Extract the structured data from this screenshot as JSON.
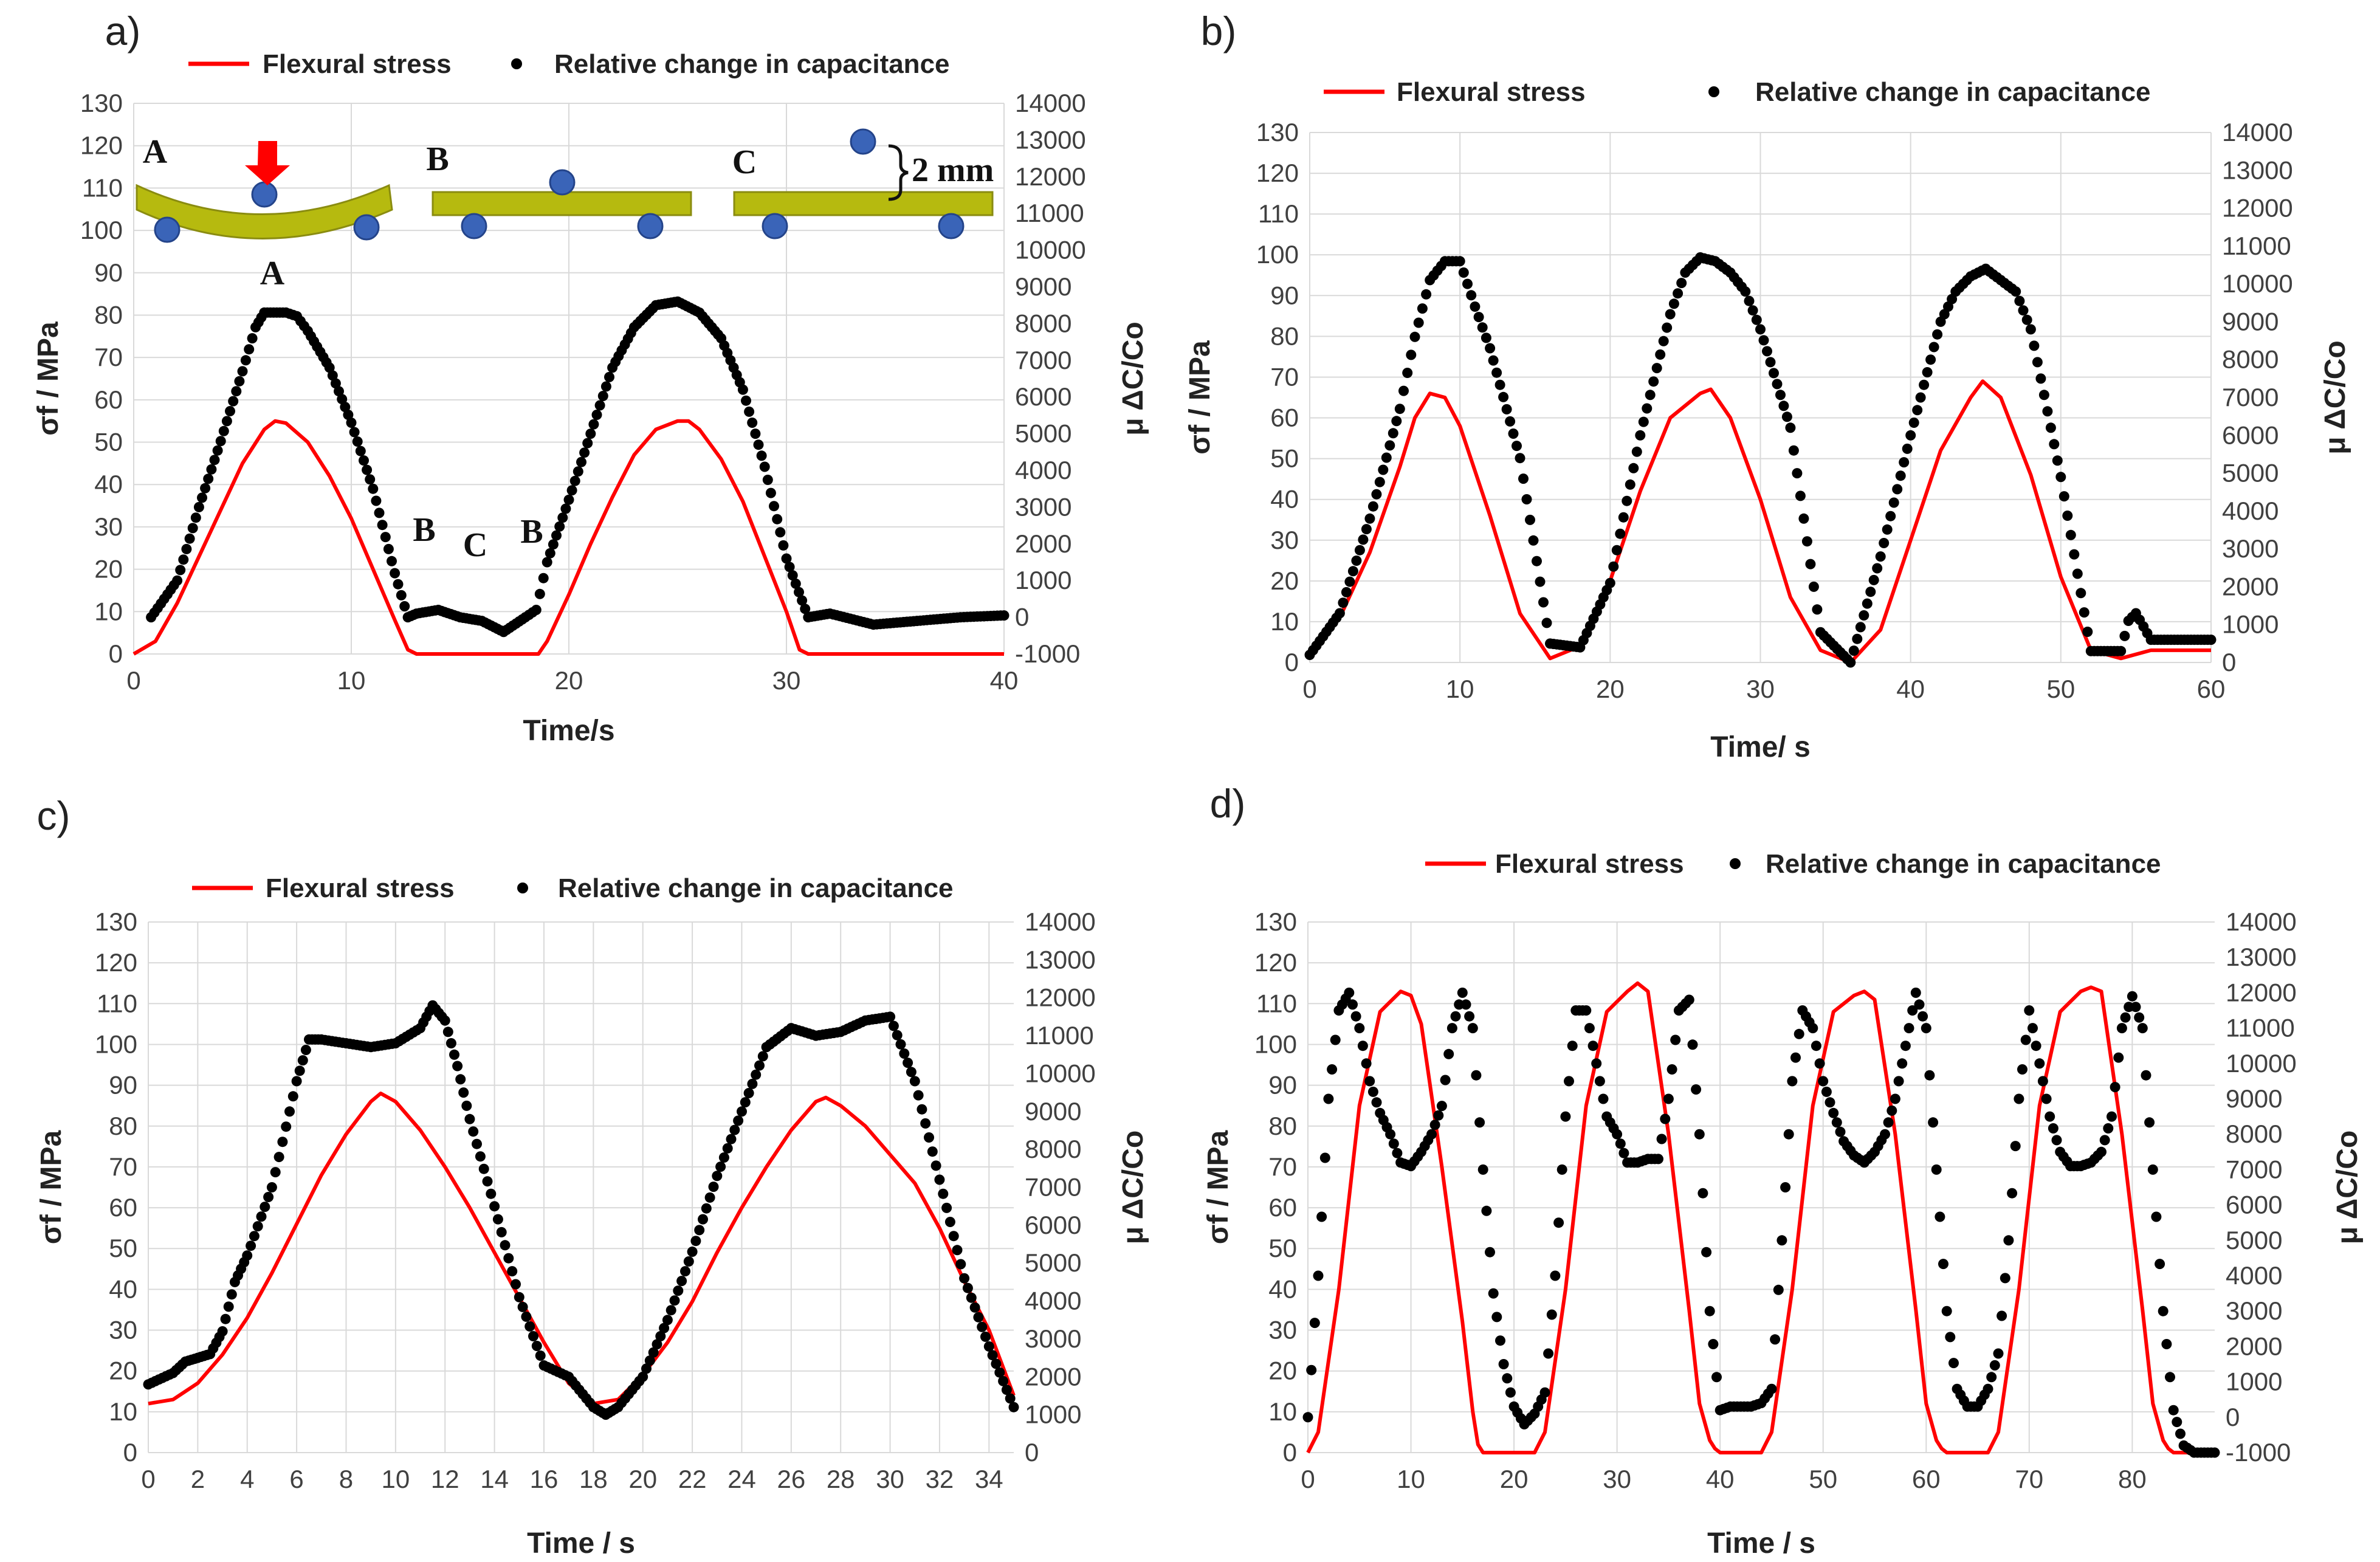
{
  "colors": {
    "stress": "#ff0000",
    "capacitance": "#000000",
    "grid": "#d9d9d9",
    "beam": "#b6ba0f",
    "ball": "#3a64b8",
    "arrow": "#ff0000"
  },
  "chart_data": [
    {
      "type": "line",
      "panel": "a)",
      "legend": [
        "Flexural stress",
        "Relative change in capacitance"
      ],
      "xlabel": "Time/s",
      "ylabel": "σf / MPa",
      "y2label": "μ ΔC/Co",
      "xlim": [
        0,
        40
      ],
      "ylim": [
        0,
        130
      ],
      "y2lim": [
        -1000,
        14000
      ],
      "xticks": [
        "0",
        "10",
        "20",
        "30",
        "40"
      ],
      "yticks": [
        "0",
        "10",
        "20",
        "30",
        "40",
        "50",
        "60",
        "70",
        "80",
        "90",
        "100",
        "110",
        "120",
        "130"
      ],
      "y2ticks": [
        "-1000",
        "0",
        "1000",
        "2000",
        "3000",
        "4000",
        "5000",
        "6000",
        "7000",
        "8000",
        "9000",
        "10000",
        "11000",
        "12000",
        "13000",
        "14000"
      ],
      "series": [
        {
          "name": "Flexural stress",
          "axis": "left",
          "x": [
            0,
            1,
            2,
            3,
            4,
            5,
            6,
            6.5,
            7,
            8,
            9,
            10,
            11,
            12,
            12.6,
            13,
            14,
            15,
            16,
            17,
            18,
            18.6,
            19,
            20,
            21,
            22,
            23,
            24,
            25,
            25.5,
            26,
            27,
            28,
            29,
            30,
            30.6,
            31,
            35,
            40
          ],
          "y": [
            0,
            3,
            12,
            23,
            34,
            45,
            53,
            55,
            54.5,
            50,
            42,
            32,
            20,
            8,
            1,
            0,
            0,
            0,
            0,
            0,
            0,
            0,
            3,
            14,
            26,
            37,
            47,
            53,
            55,
            55,
            53,
            46,
            36,
            23,
            10,
            1,
            0,
            0,
            0
          ]
        },
        {
          "name": "Relative change in capacitance",
          "axis": "right",
          "x": [
            0.8,
            2,
            3,
            4,
            5,
            5.6,
            6,
            7,
            7.5,
            8,
            9,
            10,
            11,
            12,
            12.6,
            13,
            14,
            15,
            16,
            17,
            18,
            18.5,
            19,
            20,
            21,
            22,
            23,
            24,
            25,
            26,
            27,
            28,
            29,
            30,
            31,
            32,
            34,
            36,
            38,
            40
          ],
          "y": [
            0,
            1000,
            3000,
            4800,
            6700,
            7900,
            8300,
            8300,
            8200,
            7800,
            6800,
            5300,
            3500,
            1200,
            0,
            100,
            200,
            0,
            -100,
            -400,
            0,
            200,
            1500,
            3200,
            5000,
            6800,
            7900,
            8500,
            8600,
            8300,
            7600,
            6200,
            4100,
            1600,
            0,
            100,
            -200,
            -100,
            0,
            50
          ]
        }
      ],
      "annotations": [
        "A",
        "B",
        "C",
        "A",
        "B",
        "C",
        "B",
        "2 mm"
      ]
    },
    {
      "type": "line",
      "panel": "b)",
      "legend": [
        "Flexural stress",
        "Relative change in capacitance"
      ],
      "xlabel": "Time/ s",
      "ylabel": "σf / MPa",
      "y2label": "μ ΔC/Co",
      "xlim": [
        0,
        60
      ],
      "ylim": [
        0,
        130
      ],
      "y2lim": [
        0,
        14000
      ],
      "xticks": [
        "0",
        "10",
        "20",
        "30",
        "40",
        "50",
        "60"
      ],
      "yticks": [
        "0",
        "10",
        "20",
        "30",
        "40",
        "50",
        "60",
        "70",
        "80",
        "90",
        "100",
        "110",
        "120",
        "130"
      ],
      "y2ticks": [
        "0",
        "1000",
        "2000",
        "3000",
        "4000",
        "5000",
        "6000",
        "7000",
        "8000",
        "9000",
        "10000",
        "11000",
        "12000",
        "13000",
        "14000"
      ],
      "series": [
        {
          "name": "Flexural stress",
          "axis": "left",
          "x": [
            0,
            2,
            4,
            6,
            7,
            8,
            9,
            10,
            12,
            14,
            16,
            18,
            20,
            22,
            24,
            26,
            26.7,
            28,
            30,
            32,
            34,
            36,
            38,
            40,
            42,
            44,
            44.8,
            46,
            48,
            50,
            52,
            54,
            56,
            60
          ],
          "y": [
            3,
            11,
            27,
            48,
            60,
            66,
            65,
            58,
            36,
            12,
            1,
            4,
            20,
            42,
            60,
            66,
            67,
            60,
            40,
            16,
            3,
            0,
            8,
            30,
            52,
            65,
            69,
            65,
            46,
            21,
            3,
            1,
            3,
            3
          ]
        },
        {
          "name": "Relative change in capacitance",
          "axis": "right",
          "x": [
            0,
            2,
            4,
            6,
            7,
            8,
            9,
            10,
            11,
            12,
            14,
            16,
            18,
            20,
            22,
            24,
            25,
            26,
            27,
            28,
            29,
            30,
            32,
            34,
            36,
            38,
            40,
            42,
            43,
            44,
            45,
            46,
            47,
            48,
            50,
            52,
            54,
            54.5,
            55,
            56,
            58,
            60
          ],
          "y": [
            200,
            1300,
            3800,
            6700,
            8600,
            10100,
            10600,
            10600,
            9400,
            8300,
            5400,
            500,
            400,
            2100,
            6000,
            9200,
            10300,
            10700,
            10600,
            10300,
            9800,
            8800,
            6200,
            800,
            0,
            2800,
            6000,
            9000,
            9800,
            10200,
            10400,
            10100,
            9800,
            8800,
            4900,
            300,
            300,
            1100,
            1300,
            600,
            600,
            600
          ]
        }
      ]
    },
    {
      "type": "line",
      "panel": "c)",
      "legend": [
        "Flexural stress",
        "Relative change in capacitance"
      ],
      "xlabel": "Time / s",
      "ylabel": "σf / MPa",
      "y2label": "μ ΔC/Co",
      "xlim": [
        0,
        35
      ],
      "ylim": [
        0,
        130
      ],
      "y2lim": [
        0,
        14000
      ],
      "xticks": [
        "0",
        "2",
        "4",
        "6",
        "8",
        "10",
        "12",
        "14",
        "16",
        "18",
        "20",
        "22",
        "24",
        "26",
        "28",
        "30",
        "32",
        "34"
      ],
      "yticks": [
        "0",
        "10",
        "20",
        "30",
        "40",
        "50",
        "60",
        "70",
        "80",
        "90",
        "100",
        "110",
        "120",
        "130"
      ],
      "y2ticks": [
        "0",
        "1000",
        "2000",
        "3000",
        "4000",
        "5000",
        "6000",
        "7000",
        "8000",
        "9000",
        "10000",
        "11000",
        "12000",
        "13000",
        "14000"
      ],
      "series": [
        {
          "name": "Flexural stress",
          "axis": "left",
          "x": [
            0,
            1,
            2,
            3,
            4,
            5,
            6,
            7,
            8,
            9,
            9.4,
            10,
            11,
            12,
            13,
            14,
            15,
            16,
            17,
            18,
            19,
            20,
            21,
            22,
            23,
            24,
            25,
            26,
            27,
            27.4,
            28,
            29,
            30,
            31,
            32,
            33,
            34,
            35
          ],
          "y": [
            12,
            13,
            17,
            24,
            33,
            44,
            56,
            68,
            78,
            86,
            88,
            86,
            79,
            70,
            60,
            49,
            38,
            27,
            17,
            12,
            13,
            19,
            27,
            37,
            49,
            60,
            70,
            79,
            86,
            87,
            85,
            80,
            73,
            66,
            55,
            42,
            30,
            14
          ]
        },
        {
          "name": "Relative change in capacitance",
          "axis": "right",
          "x": [
            0,
            1,
            1.5,
            2,
            2.5,
            3,
            3.5,
            4,
            5,
            6,
            6.5,
            7,
            8,
            9,
            10,
            11,
            11.5,
            12,
            12.5,
            13,
            14,
            15,
            16,
            17,
            18,
            18.5,
            19,
            20,
            21,
            22,
            23,
            24,
            25,
            26,
            27,
            28,
            29,
            30,
            31,
            32,
            33,
            34,
            35
          ],
          "y": [
            1800,
            2100,
            2400,
            2500,
            2600,
            3200,
            4500,
            5200,
            7000,
            9800,
            10900,
            10900,
            10800,
            10700,
            10800,
            11200,
            11800,
            11400,
            10200,
            8800,
            6500,
            4100,
            2300,
            2000,
            1200,
            1000,
            1200,
            2000,
            3500,
            5300,
            7300,
            9000,
            10700,
            11200,
            11000,
            11100,
            11400,
            11500,
            9800,
            7200,
            4600,
            2800,
            1200
          ]
        }
      ]
    },
    {
      "type": "line",
      "panel": "d)",
      "legend": [
        "Flexural stress",
        "Relative change in capacitance"
      ],
      "xlabel": "Time / s",
      "ylabel": "σf / MPa",
      "y2label": "μ ΔC/Co",
      "xlim": [
        0,
        88
      ],
      "ylim": [
        0,
        130
      ],
      "y2lim": [
        -1000,
        14000
      ],
      "xticks": [
        "0",
        "10",
        "20",
        "30",
        "40",
        "50",
        "60",
        "70",
        "80"
      ],
      "yticks": [
        "0",
        "10",
        "20",
        "30",
        "40",
        "50",
        "60",
        "70",
        "80",
        "90",
        "100",
        "110",
        "120",
        "130"
      ],
      "y2ticks": [
        "-1000",
        "0",
        "1000",
        "2000",
        "3000",
        "4000",
        "5000",
        "6000",
        "7000",
        "8000",
        "9000",
        "10000",
        "11000",
        "12000",
        "13000",
        "14000"
      ],
      "series": [
        {
          "name": "Flexural stress",
          "axis": "left",
          "x": [
            0,
            1,
            3,
            5,
            7,
            9,
            10,
            11,
            13,
            15,
            16,
            16.5,
            17,
            22,
            23,
            25,
            27,
            29,
            31,
            32,
            33,
            35,
            37,
            38,
            39,
            39.5,
            40,
            44,
            45,
            47,
            49,
            51,
            53,
            54,
            55,
            57,
            59,
            60,
            61,
            61.5,
            62,
            66,
            67,
            69,
            71,
            73,
            75,
            76,
            77,
            79,
            81,
            82,
            83,
            83.5,
            84,
            88
          ],
          "y": [
            0,
            5,
            40,
            85,
            108,
            113,
            112,
            105,
            70,
            32,
            10,
            2,
            0,
            0,
            5,
            40,
            85,
            108,
            113,
            115,
            113,
            78,
            35,
            12,
            3,
            1,
            0,
            0,
            5,
            40,
            85,
            108,
            112,
            113,
            111,
            78,
            35,
            12,
            3,
            1,
            0,
            0,
            5,
            40,
            85,
            108,
            113,
            114,
            113,
            78,
            35,
            12,
            3,
            1,
            0,
            0
          ]
        },
        {
          "name": "Relative change in capacitance",
          "axis": "right",
          "x": [
            0,
            1,
            2,
            3,
            4,
            5,
            6,
            7,
            8,
            9,
            10,
            11,
            12,
            13,
            14,
            15,
            16,
            17,
            18,
            19,
            20,
            21,
            22,
            23,
            24,
            25,
            26,
            27,
            28,
            29,
            30,
            31,
            32,
            33,
            34,
            35,
            36,
            37,
            38,
            39,
            40,
            41,
            42,
            43,
            44,
            45,
            46,
            47,
            48,
            49,
            50,
            51,
            52,
            53,
            54,
            55,
            56,
            57,
            58,
            59,
            60,
            61,
            62,
            63,
            64,
            65,
            66,
            67,
            68,
            69,
            70,
            71,
            72,
            73,
            74,
            75,
            76,
            77,
            78,
            79,
            80,
            81,
            82,
            83,
            84,
            85,
            86,
            87,
            88
          ],
          "y": [
            0,
            4000,
            9000,
            11500,
            12000,
            11000,
            9500,
            8600,
            8000,
            7200,
            7100,
            7500,
            8000,
            8800,
            11000,
            12000,
            11000,
            7000,
            3500,
            1500,
            300,
            -200,
            100,
            700,
            4000,
            8500,
            11500,
            11500,
            10000,
            8500,
            8000,
            7200,
            7200,
            7300,
            7300,
            9000,
            11500,
            11800,
            8000,
            3000,
            200,
            300,
            300,
            300,
            400,
            800,
            5000,
            9500,
            11500,
            11000,
            9500,
            8600,
            7800,
            7400,
            7200,
            7500,
            8000,
            9000,
            10500,
            12000,
            11000,
            7000,
            3000,
            800,
            300,
            300,
            800,
            1800,
            5000,
            9000,
            11500,
            10000,
            8500,
            7500,
            7100,
            7100,
            7200,
            7500,
            8500,
            11000,
            11900,
            11000,
            7000,
            3000,
            200,
            -800,
            -1000,
            -1000,
            -1000
          ]
        }
      ]
    }
  ]
}
